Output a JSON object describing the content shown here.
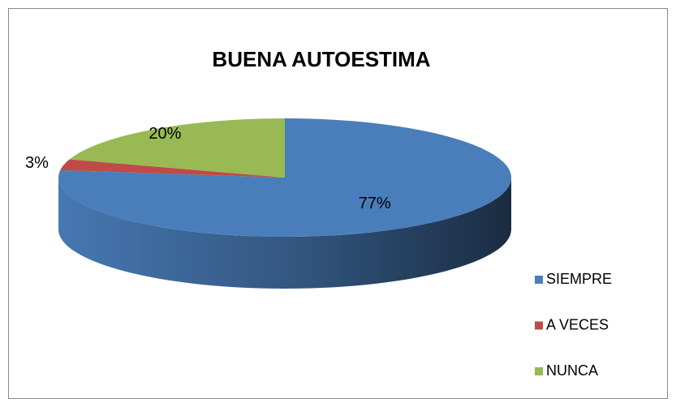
{
  "chart_data": {
    "type": "pie",
    "title": "BUENA AUTOESTIMA",
    "categories": [
      "SIEMPRE",
      "A VECES",
      "NUNCA"
    ],
    "values": [
      77,
      3,
      20
    ],
    "value_labels": [
      "77%",
      "3%",
      "20%"
    ],
    "colors": [
      "#4a7ebb",
      "#be4b48",
      "#98b954"
    ],
    "legend": "right"
  }
}
